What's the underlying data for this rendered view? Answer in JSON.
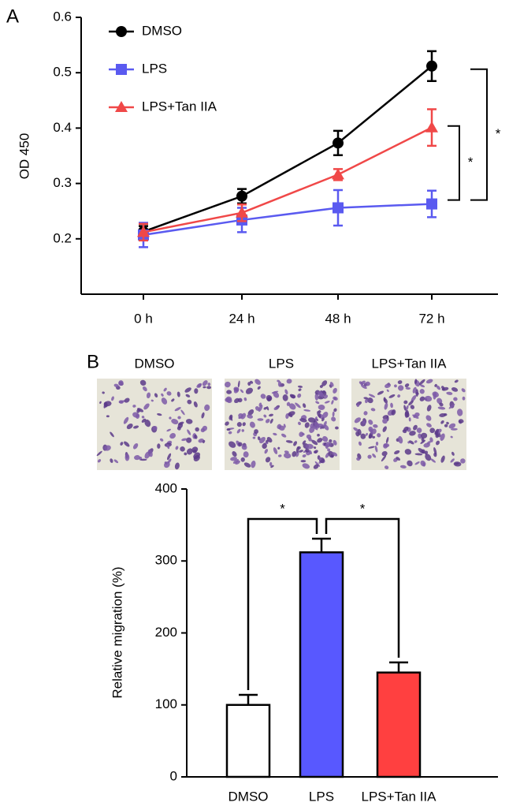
{
  "panels": [
    "A",
    "B"
  ],
  "images": {
    "labels": [
      "DMSO",
      "LPS",
      "LPS+Tan IIA"
    ]
  },
  "chart_data": [
    {
      "type": "line",
      "ylabel": "OD 450",
      "x": [
        "0 h",
        "24 h",
        "48 h",
        "72 h"
      ],
      "series": [
        {
          "name": "DMSO",
          "color": "#000000",
          "marker": "circle",
          "values": [
            0.213,
            0.277,
            0.373,
            0.512
          ],
          "errors": [
            0.01,
            0.013,
            0.022,
            0.027
          ]
        },
        {
          "name": "LPS",
          "color": "#5a5af0",
          "marker": "square",
          "values": [
            0.207,
            0.234,
            0.256,
            0.263
          ],
          "errors": [
            0.022,
            0.022,
            0.032,
            0.024
          ]
        },
        {
          "name": "LPS+Tan IIA",
          "color": "#f04848",
          "marker": "triangle",
          "values": [
            0.212,
            0.247,
            0.316,
            0.401
          ],
          "errors": [
            0.015,
            0.015,
            0.01,
            0.033
          ]
        }
      ],
      "ylim": [
        0.1,
        0.6
      ],
      "yticks": [
        0.2,
        0.3,
        0.4,
        0.5,
        0.6
      ],
      "legend": "top-left",
      "annotations": [
        "*",
        "*"
      ]
    },
    {
      "type": "bar",
      "ylabel": "Relative migration (%)",
      "categories": [
        "DMSO",
        "LPS",
        "LPS+Tan IIA"
      ],
      "values": [
        100,
        312,
        145
      ],
      "errors": [
        14,
        19,
        14
      ],
      "colors": [
        "#ffffff",
        "#5858ff",
        "#ff4040"
      ],
      "ylim": [
        0,
        400
      ],
      "yticks": [
        0,
        100,
        200,
        300,
        400
      ],
      "annotations": [
        "*",
        "*"
      ]
    }
  ]
}
